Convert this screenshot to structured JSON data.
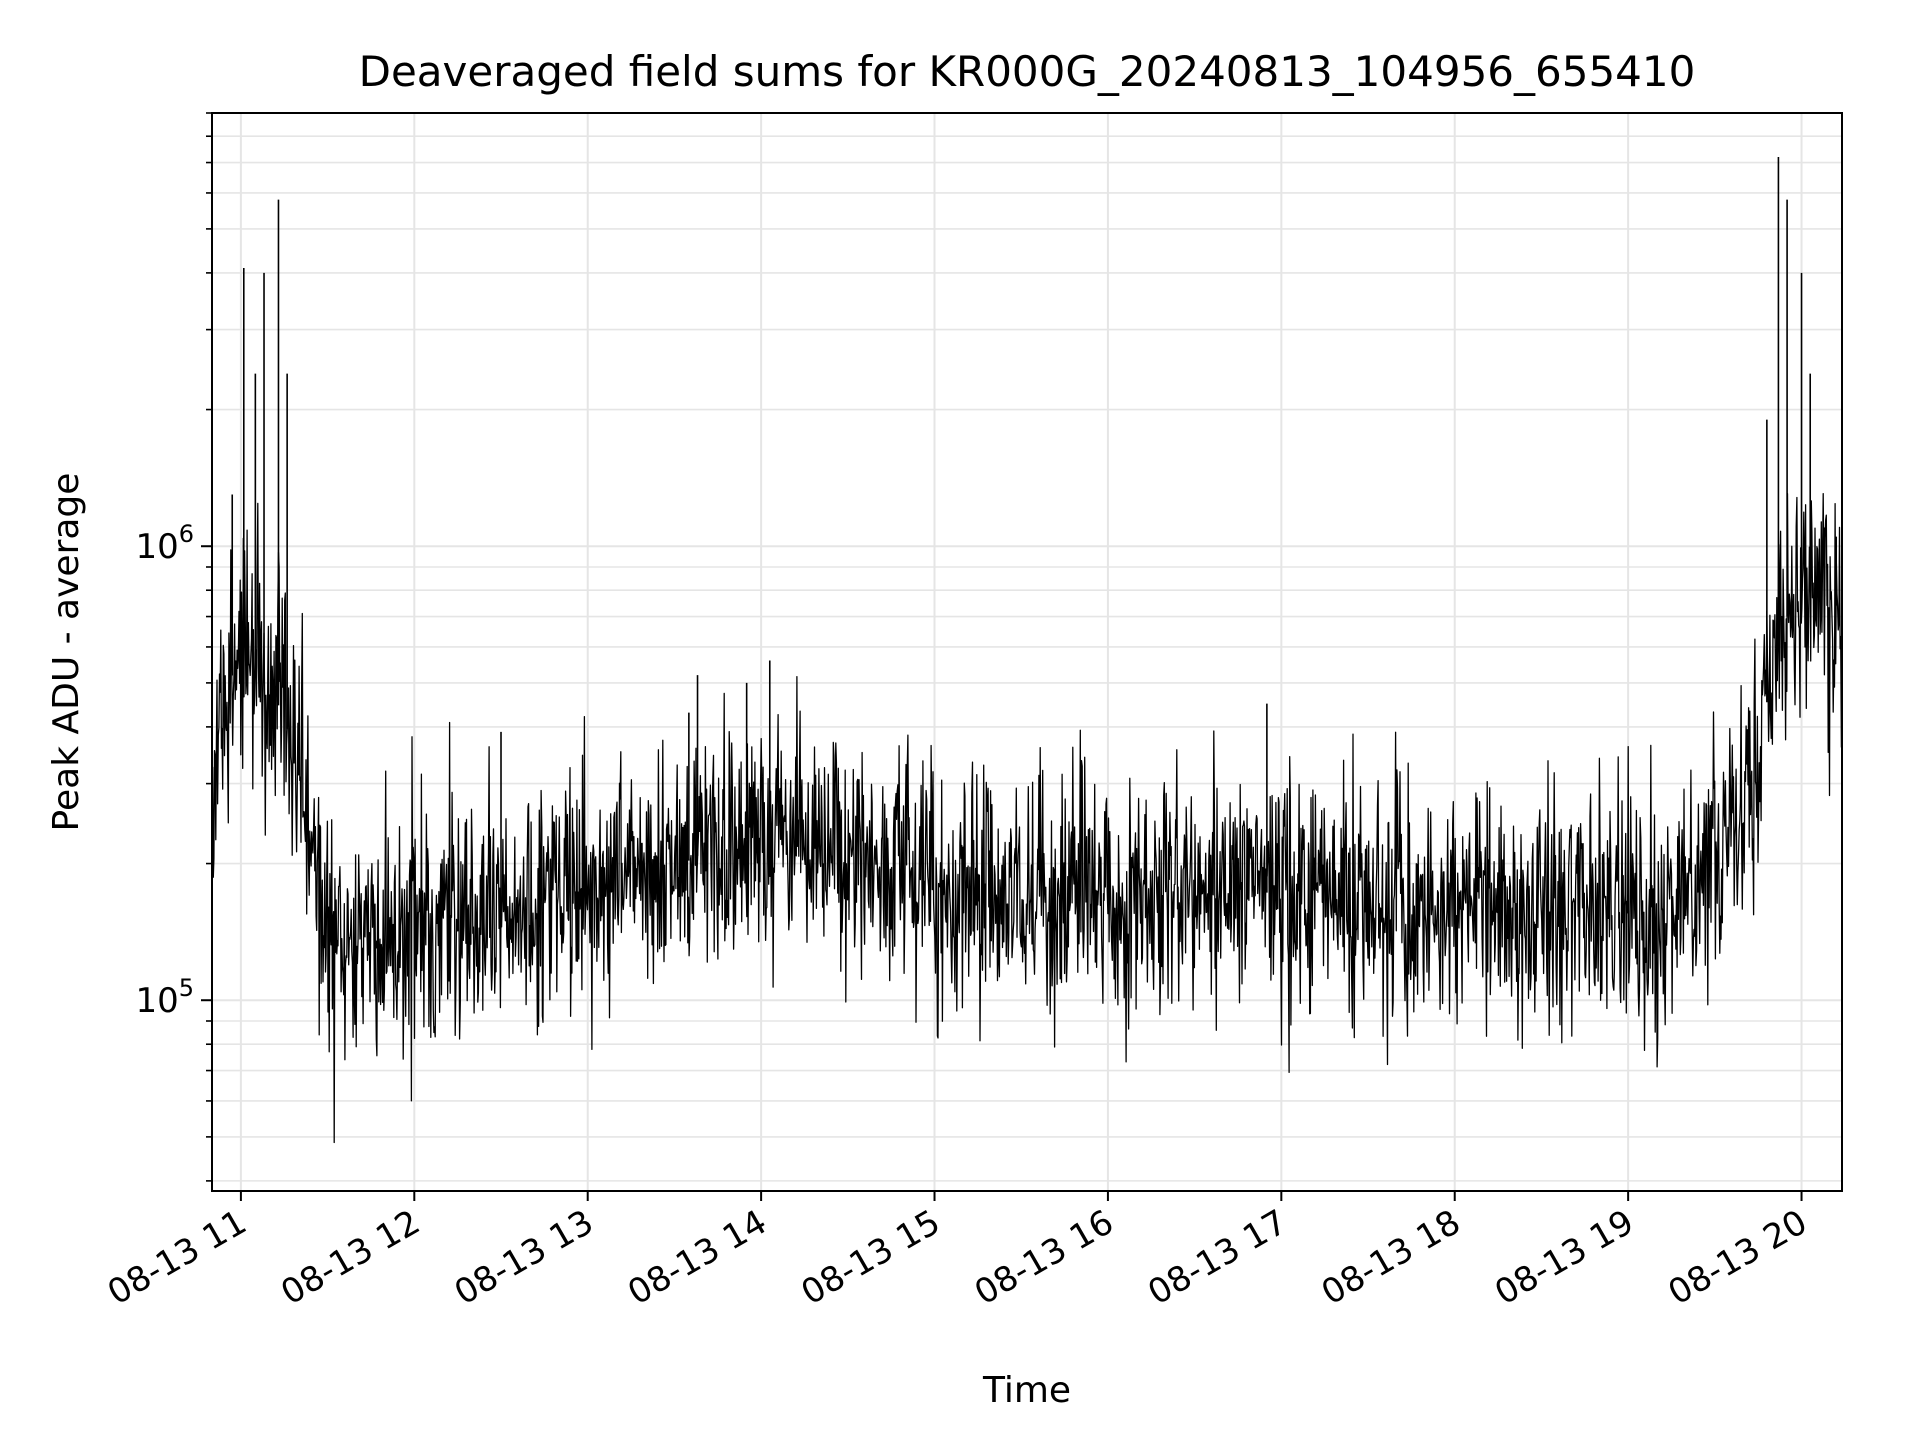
{
  "chart_data": {
    "type": "line",
    "title": "Deaveraged field sums for KR000G_20240813_104956_655410",
    "xlabel": "Time",
    "ylabel": "Peak ADU - average",
    "x_axis": {
      "kind": "datetime",
      "range": [
        "2024-08-13 10:50",
        "2024-08-13 20:14"
      ],
      "ticks": [
        {
          "value": "2024-08-13 11:00",
          "label": "08-13 11"
        },
        {
          "value": "2024-08-13 12:00",
          "label": "08-13 12"
        },
        {
          "value": "2024-08-13 13:00",
          "label": "08-13 13"
        },
        {
          "value": "2024-08-13 14:00",
          "label": "08-13 14"
        },
        {
          "value": "2024-08-13 15:00",
          "label": "08-13 15"
        },
        {
          "value": "2024-08-13 16:00",
          "label": "08-13 16"
        },
        {
          "value": "2024-08-13 17:00",
          "label": "08-13 17"
        },
        {
          "value": "2024-08-13 18:00",
          "label": "08-13 18"
        },
        {
          "value": "2024-08-13 19:00",
          "label": "08-13 19"
        },
        {
          "value": "2024-08-13 20:00",
          "label": "08-13 20"
        }
      ]
    },
    "y_axis": {
      "scale": "log",
      "range": [
        38000,
        9000000
      ],
      "major_ticks": [
        {
          "value": 100000,
          "base": "10",
          "exp": "5"
        },
        {
          "value": 1000000,
          "base": "10",
          "exp": "6"
        }
      ]
    },
    "grid": true,
    "series": [
      {
        "color": "#000000",
        "points": [
          [
            "10:50",
            280000
          ],
          [
            "10:53",
            420000
          ],
          [
            "10:56",
            500000
          ],
          [
            "10:59",
            560000
          ],
          [
            "11:02",
            640000
          ],
          [
            "11:05",
            560000
          ],
          [
            "11:08",
            500000
          ],
          [
            "11:11",
            480000
          ],
          [
            "11:14",
            430000
          ],
          [
            "11:17",
            380000
          ],
          [
            "11:20",
            310000
          ],
          [
            "11:23",
            230000
          ],
          [
            "11:26",
            165000
          ],
          [
            "11:30",
            140000
          ],
          [
            "11:40",
            125000
          ],
          [
            "11:50",
            140000
          ],
          [
            "12:00",
            135000
          ],
          [
            "12:15",
            145000
          ],
          [
            "12:30",
            150000
          ],
          [
            "12:45",
            165000
          ],
          [
            "13:00",
            175000
          ],
          [
            "13:15",
            185000
          ],
          [
            "13:30",
            195000
          ],
          [
            "13:45",
            220000
          ],
          [
            "14:00",
            230000
          ],
          [
            "14:15",
            225000
          ],
          [
            "14:30",
            210000
          ],
          [
            "14:45",
            190000
          ],
          [
            "15:00",
            175000
          ],
          [
            "15:15",
            170000
          ],
          [
            "15:30",
            175000
          ],
          [
            "15:45",
            180000
          ],
          [
            "16:00",
            175000
          ],
          [
            "16:15",
            170000
          ],
          [
            "16:30",
            175000
          ],
          [
            "16:45",
            178000
          ],
          [
            "17:00",
            170000
          ],
          [
            "17:15",
            175000
          ],
          [
            "17:30",
            165000
          ],
          [
            "17:45",
            155000
          ],
          [
            "18:00",
            160000
          ],
          [
            "18:15",
            158000
          ],
          [
            "18:30",
            150000
          ],
          [
            "18:45",
            152000
          ],
          [
            "19:00",
            155000
          ],
          [
            "19:15",
            160000
          ],
          [
            "19:30",
            200000
          ],
          [
            "19:40",
            270000
          ],
          [
            "19:45",
            330000
          ],
          [
            "19:50",
            560000
          ],
          [
            "19:55",
            700000
          ],
          [
            "20:00",
            780000
          ],
          [
            "20:05",
            800000
          ],
          [
            "20:10",
            760000
          ],
          [
            "20:14",
            720000
          ]
        ],
        "spikes": [
          [
            "10:57",
            1300000
          ],
          [
            "11:01",
            4100000
          ],
          [
            "11:05",
            2400000
          ],
          [
            "11:08",
            4000000
          ],
          [
            "11:13",
            5800000
          ],
          [
            "11:16",
            2400000
          ],
          [
            "11:47",
            130000
          ],
          [
            "12:30",
            390000
          ],
          [
            "13:35",
            430000
          ],
          [
            "13:38",
            520000
          ],
          [
            "13:55",
            500000
          ],
          [
            "14:03",
            560000
          ],
          [
            "16:55",
            450000
          ],
          [
            "19:48",
            1900000
          ],
          [
            "19:52",
            7200000
          ],
          [
            "19:55",
            5800000
          ],
          [
            "20:00",
            4000000
          ],
          [
            "20:03",
            2400000
          ],
          [
            "20:08",
            1100000
          ],
          [
            "20:12",
            1050000
          ]
        ]
      }
    ]
  }
}
